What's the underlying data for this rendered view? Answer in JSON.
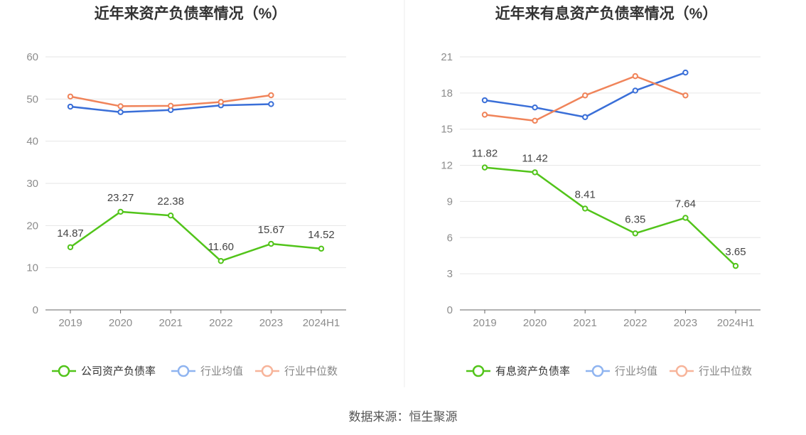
{
  "source_label": "数据来源：恒生聚源",
  "colors": {
    "company": "#52c41a",
    "avg": "#3a6fd8",
    "median": "#f0845a",
    "legend_avg": "#8fb4f0",
    "legend_median": "#f7b49a"
  },
  "chart_data": [
    {
      "type": "line",
      "title": "近年来资产负债率情况（%）",
      "categories": [
        "2019",
        "2020",
        "2021",
        "2022",
        "2023",
        "2024H1"
      ],
      "ylim": [
        0,
        60
      ],
      "yticks": [
        0,
        10,
        20,
        30,
        40,
        50,
        60
      ],
      "ytick_labels": [
        "0",
        "10",
        "20",
        "30",
        "40",
        "50",
        "60"
      ],
      "grid": true,
      "legend_position": "bottom",
      "series": [
        {
          "name": "公司资产负债率",
          "key": "company",
          "values": [
            14.87,
            23.27,
            22.38,
            11.6,
            15.67,
            14.52
          ],
          "labels": [
            "14.87",
            "23.27",
            "22.38",
            "11.60",
            "15.67",
            "14.52"
          ]
        },
        {
          "name": "行业均值",
          "key": "avg",
          "values": [
            48.2,
            46.9,
            47.4,
            48.5,
            48.8,
            null
          ]
        },
        {
          "name": "行业中位数",
          "key": "median",
          "values": [
            50.6,
            48.3,
            48.4,
            49.3,
            50.9,
            null
          ]
        }
      ]
    },
    {
      "type": "line",
      "title": "近年来有息资产负债率情况（%）",
      "categories": [
        "2019",
        "2020",
        "2021",
        "2022",
        "2023",
        "2024H1"
      ],
      "ylim": [
        0,
        21
      ],
      "yticks": [
        0,
        3,
        6,
        9,
        12,
        15,
        18,
        21
      ],
      "ytick_labels": [
        "0",
        "3",
        "6",
        "9",
        "12",
        "15",
        "18",
        "21"
      ],
      "grid": true,
      "legend_position": "bottom",
      "series": [
        {
          "name": "有息资产负债率",
          "key": "company",
          "values": [
            11.82,
            11.42,
            8.41,
            6.35,
            7.64,
            3.65
          ],
          "labels": [
            "11.82",
            "11.42",
            "8.41",
            "6.35",
            "7.64",
            "3.65"
          ]
        },
        {
          "name": "行业均值",
          "key": "avg",
          "values": [
            17.4,
            16.8,
            16.0,
            18.2,
            19.7,
            null
          ]
        },
        {
          "name": "行业中位数",
          "key": "median",
          "values": [
            16.2,
            15.7,
            17.8,
            19.4,
            17.8,
            null
          ]
        }
      ]
    }
  ]
}
